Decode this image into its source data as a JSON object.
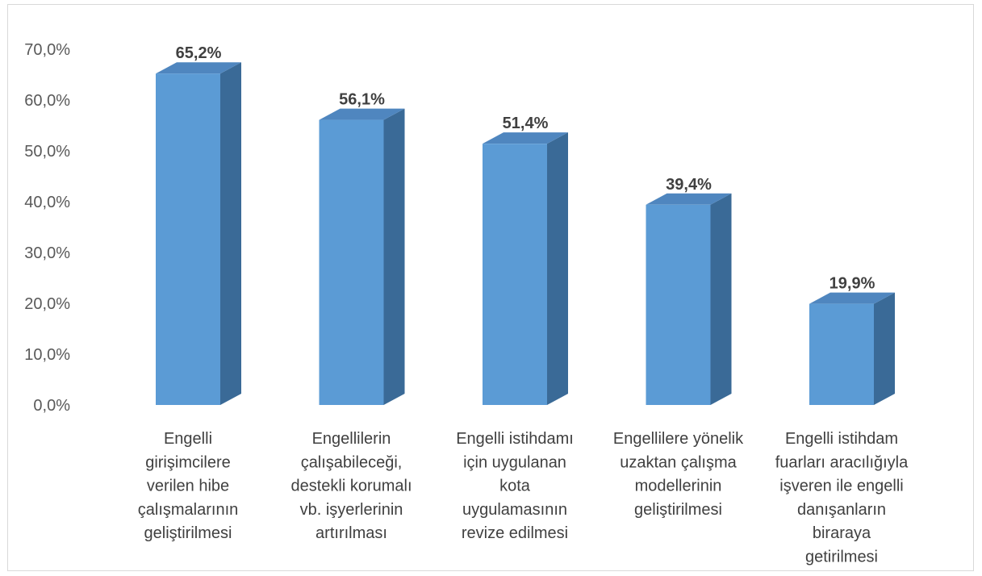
{
  "chart_data": {
    "type": "bar",
    "style": "3d-column",
    "categories": [
      [
        "Engelli",
        "girişimcilere",
        "verilen hibe",
        "çalışmalarının",
        "geliştirilmesi"
      ],
      [
        "Engellilerin",
        "çalışabileceği,",
        "destekli korumalı",
        "vb. işyerlerinin",
        "artırılması"
      ],
      [
        "Engelli istihdamı",
        "için uygulanan",
        "kota",
        "uygulamasının",
        "revize edilmesi"
      ],
      [
        "Engellilere yönelik",
        "uzaktan çalışma",
        "modellerinin",
        "geliştirilmesi"
      ],
      [
        "Engelli istihdam",
        "fuarları aracılığıyla",
        "işveren ile engelli",
        "danışanların",
        "biraraya",
        "getirilmesi"
      ]
    ],
    "values": [
      65.2,
      56.1,
      51.4,
      39.4,
      19.9
    ],
    "value_labels": [
      "65,2%",
      "56,1%",
      "51,4%",
      "39,4%",
      "19,9%"
    ],
    "yticks": [
      0,
      10,
      20,
      30,
      40,
      50,
      60,
      70
    ],
    "ytick_labels": [
      "0,0%",
      "10,0%",
      "20,0%",
      "30,0%",
      "40,0%",
      "50,0%",
      "60,0%",
      "70,0%"
    ],
    "ylim": [
      0,
      70
    ],
    "grid": false,
    "legend": "none",
    "title": "",
    "xlabel": "",
    "ylabel": "",
    "colors": {
      "front": "#5b9bd5",
      "side": "#3a6a97",
      "top": "#4f86bf"
    }
  }
}
